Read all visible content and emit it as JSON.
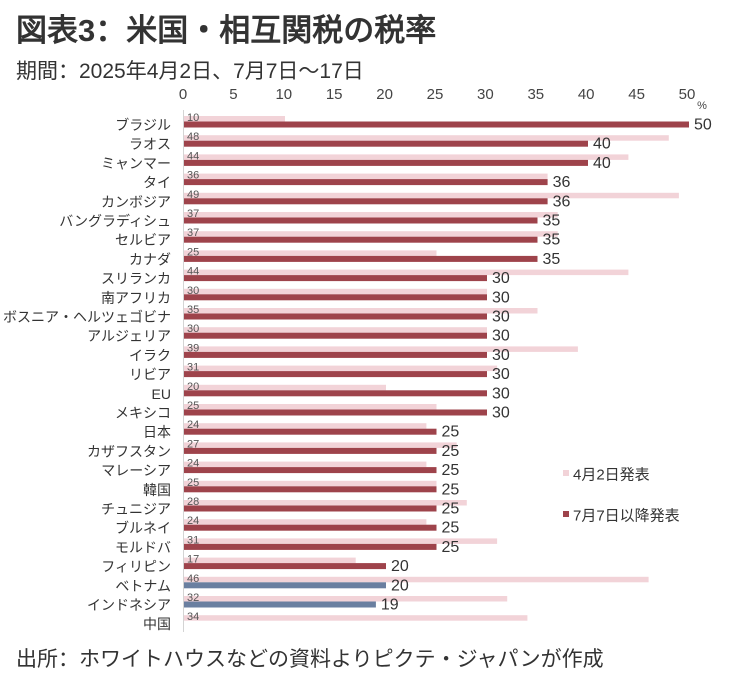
{
  "chart_data": {
    "type": "bar",
    "orientation": "horizontal",
    "title": "図表3：米国・相互関税の税率",
    "subtitle": "期間：2025年4月2日、7月7日～17日",
    "xlabel": "",
    "ylabel": "",
    "unit": "%",
    "xlim": [
      0,
      50
    ],
    "xticks": [
      0,
      5,
      10,
      15,
      20,
      25,
      30,
      35,
      40,
      45,
      50
    ],
    "xtick_labels": [
      "0",
      "5",
      "10",
      "15",
      "20",
      "25",
      "30",
      "35",
      "40",
      "45",
      "50"
    ],
    "grid": false,
    "legend_position": "right",
    "categories": [
      "ブラジル",
      "ラオス",
      "ミャンマー",
      "タイ",
      "カンボジア",
      "バングラディシュ",
      "セルビア",
      "カナダ",
      "スリランカ",
      "南アフリカ",
      "ボスニア・ヘルツェゴビナ",
      "アルジェリア",
      "イラク",
      "リビア",
      "EU",
      "メキシコ",
      "日本",
      "カザフスタン",
      "マレーシア",
      "韓国",
      "チュニジア",
      "ブルネイ",
      "モルドバ",
      "フィリピン",
      "ベトナム",
      "インドネシア",
      "中国"
    ],
    "series": [
      {
        "name": "4月2日発表",
        "color": "#f2d3d8",
        "values": [
          10,
          48,
          44,
          36,
          49,
          37,
          37,
          25,
          44,
          30,
          35,
          30,
          39,
          31,
          20,
          25,
          24,
          27,
          24,
          25,
          28,
          24,
          31,
          17,
          46,
          32,
          34
        ]
      },
      {
        "name": "7月7日以降発表",
        "color": "#9e434b",
        "values": [
          50,
          40,
          40,
          36,
          36,
          35,
          35,
          35,
          30,
          30,
          30,
          30,
          30,
          30,
          30,
          30,
          25,
          25,
          25,
          25,
          25,
          25,
          25,
          20,
          20,
          19,
          null
        ]
      }
    ],
    "highlight_indices": [
      24,
      25
    ],
    "highlight_color": "#6a7fa0",
    "axis_color": "#d4d4d4"
  },
  "footer": {
    "source": "出所：ホワイトハウスなどの資料よりピクテ・ジャパンが作成"
  }
}
